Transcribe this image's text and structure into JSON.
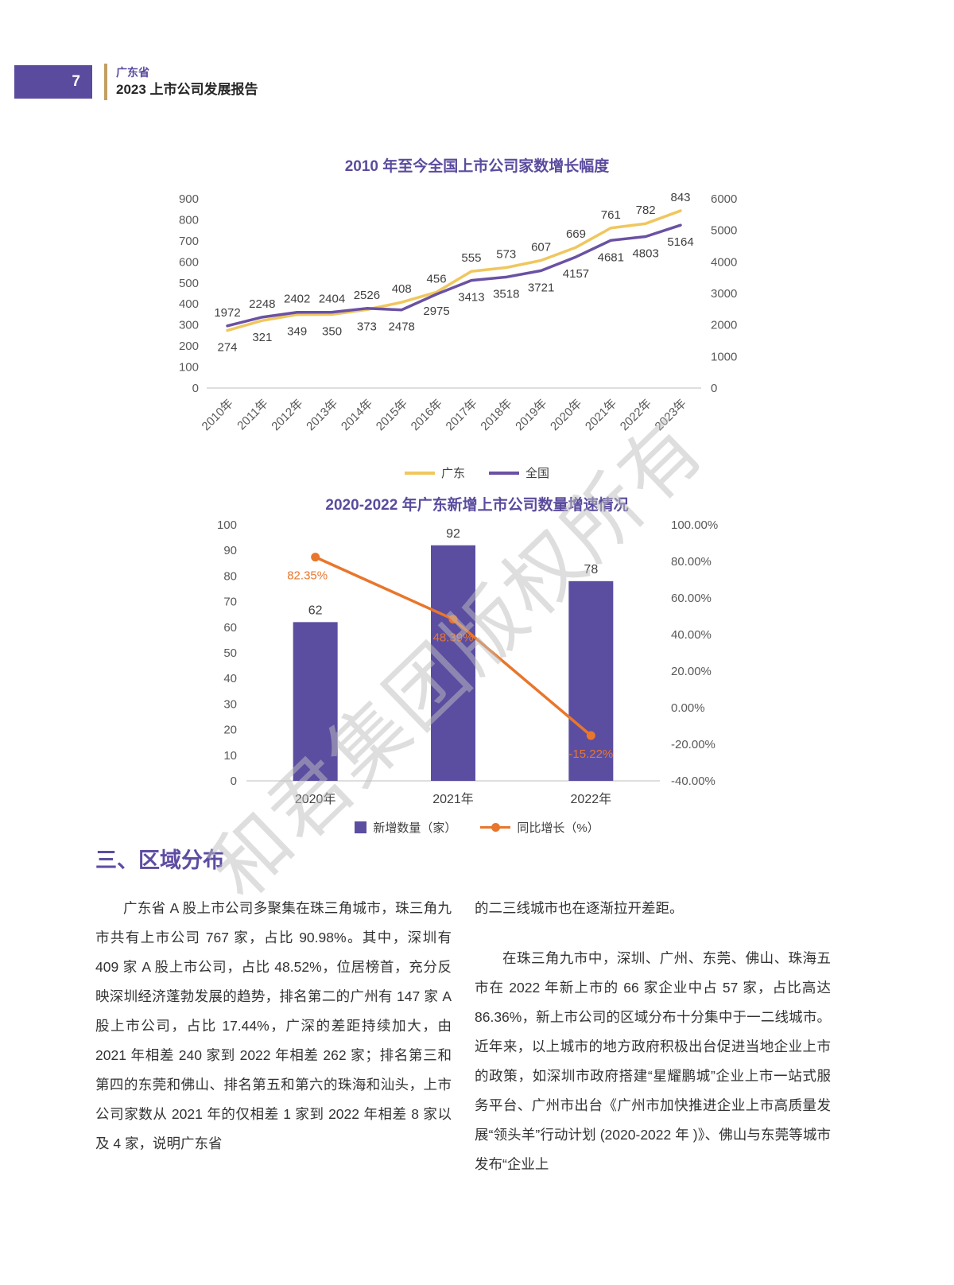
{
  "page": {
    "number": "7",
    "header_title": "广东省",
    "header_subtitle": "2023 上市公司发展报告"
  },
  "watermark": "和君集团版权所有",
  "chart_data": [
    {
      "type": "line",
      "title": "2010 年至今全国上市公司家数增长幅度",
      "categories": [
        "2010年",
        "2011年",
        "2012年",
        "2013年",
        "2014年",
        "2015年",
        "2016年",
        "2017年",
        "2018年",
        "2019年",
        "2020年",
        "2021年",
        "2022年",
        "2023年"
      ],
      "series": [
        {
          "name": "广东",
          "axis": "left",
          "color": "#F0C75E",
          "values": [
            274,
            321,
            349,
            350,
            373,
            408,
            456,
            555,
            573,
            607,
            669,
            761,
            782,
            843
          ]
        },
        {
          "name": "全国",
          "axis": "right",
          "color": "#6A51A3",
          "values": [
            1972,
            2248,
            2402,
            2404,
            2526,
            2478,
            2975,
            3413,
            3518,
            3721,
            4157,
            4681,
            4803,
            5164
          ]
        }
      ],
      "left_axis": {
        "min": 0,
        "max": 900,
        "step": 100,
        "tick_labels": [
          "900",
          "800",
          "700",
          "600",
          "500",
          "400",
          "300",
          "200",
          "100",
          "0"
        ]
      },
      "right_axis": {
        "min": 0,
        "max": 6000,
        "step": 1000,
        "tick_labels": [
          "6000",
          "5000",
          "4000",
          "3000",
          "2000",
          "1000",
          "0"
        ]
      },
      "legend_position": "bottom",
      "grid": false
    },
    {
      "type": "bar+line",
      "title": "2020-2022 年广东新增上市公司数量增速情况",
      "categories": [
        "2020年",
        "2021年",
        "2022年"
      ],
      "bar": {
        "name": "新增数量（家）",
        "color": "#5B4EA1",
        "values": [
          62,
          92,
          78
        ]
      },
      "line": {
        "name": "同比增长（%）",
        "color": "#E8762C",
        "values": [
          82.35,
          48.39,
          -15.22
        ],
        "labels": [
          "82.35%",
          "48.39%",
          "-15.22%"
        ]
      },
      "left_axis": {
        "min": 0,
        "max": 100,
        "step": 10,
        "tick_labels": [
          "100",
          "90",
          "80",
          "70",
          "60",
          "50",
          "40",
          "30",
          "20",
          "10",
          "0"
        ]
      },
      "right_axis": {
        "min": -40,
        "max": 100,
        "step": 20,
        "tick_labels": [
          "100.00%",
          "80.00%",
          "60.00%",
          "40.00%",
          "20.00%",
          "0.00%",
          "-20.00%",
          "-40.00%"
        ]
      },
      "legend_position": "bottom",
      "grid": false
    }
  ],
  "section": {
    "heading": "三、区域分布",
    "left_column": [
      {
        "indent": true,
        "text": "广东省 A 股上市公司多聚集在珠三角城市，珠三角九市共有上市公司 767 家，占比 90.98%。其中，深圳有 409 家 A 股上市公司，占比 48.52%，位居榜首，充分反映深圳经济蓬勃发展的趋势，排名第二的广州有 147 家 A 股上市公司，占比 17.44%，广深的差距持续加大，由 2021 年相差 240 家到 2022 年相差 262 家；排名第三和第四的东莞和佛山、排名第五和第六的珠海和汕头，上市公司家数从 2021 年的仅相差 1 家到 2022 年相差 8 家以及 4 家，说明广东省"
      }
    ],
    "right_column": [
      {
        "indent": false,
        "text": "的二三线城市也在逐渐拉开差距。"
      },
      {
        "indent": true,
        "text": "在珠三角九市中，深圳、广州、东莞、佛山、珠海五市在 2022 年新上市的 66 家企业中占 57 家，占比高达 86.36%，新上市公司的区域分布十分集中于一二线城市。近年来，以上城市的地方政府积极出台促进当地企业上市的政策，如深圳市政府搭建“星耀鹏城”企业上市一站式服务平台、广州市出台《广州市加快推进企业上市高质量发展“领头羊”行动计划 (2020-2022 年 )》、佛山与东莞等城市发布“企业上"
      }
    ]
  }
}
